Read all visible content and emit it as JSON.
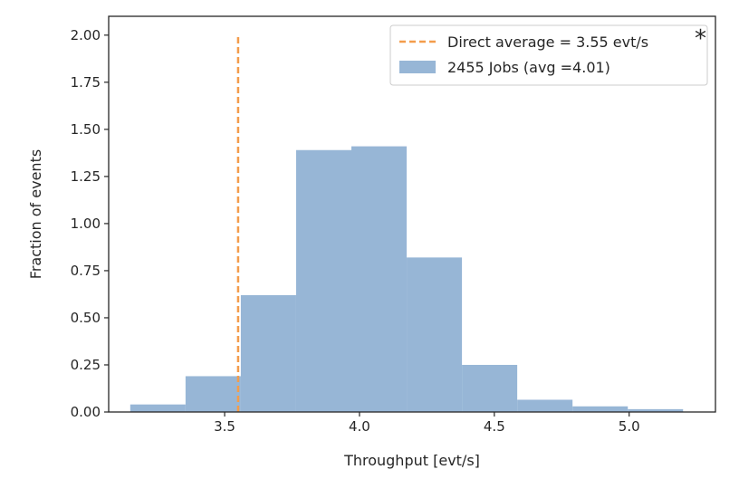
{
  "chart_data": {
    "type": "bar",
    "subtype": "histogram",
    "xlabel": "Throughput [evt/s]",
    "ylabel": "Fraction of events",
    "xlim": [
      3.07,
      5.32
    ],
    "ylim": [
      0,
      2.1
    ],
    "xticks": [
      3.5,
      4.0,
      4.5,
      5.0
    ],
    "xtick_labels": [
      "3.5",
      "4.0",
      "4.5",
      "5.0"
    ],
    "yticks": [
      0,
      0.25,
      0.5,
      0.75,
      1.0,
      1.25,
      1.5,
      1.75,
      2.0
    ],
    "ytick_labels": [
      "0.00",
      "0.25",
      "0.50",
      "0.75",
      "1.00",
      "1.25",
      "1.50",
      "1.75",
      "2.00"
    ],
    "bin_edges": [
      3.15,
      3.355,
      3.56,
      3.765,
      3.97,
      4.175,
      4.38,
      4.585,
      4.79,
      4.995,
      5.2
    ],
    "series": [
      {
        "name": "2455 Jobs (avg =4.01)",
        "values": [
          0.04,
          0.19,
          0.62,
          1.39,
          1.41,
          0.82,
          0.25,
          0.065,
          0.03,
          0.015
        ],
        "color": "#97b6d6"
      }
    ],
    "reference_line": {
      "name": "Direct average = 3.55 evt/s",
      "x": 3.55,
      "y_range": [
        0,
        2.0
      ],
      "color": "#f39c4b",
      "style": "dashed"
    },
    "legend_position": "top-right",
    "grid": false,
    "annotation": "*"
  }
}
